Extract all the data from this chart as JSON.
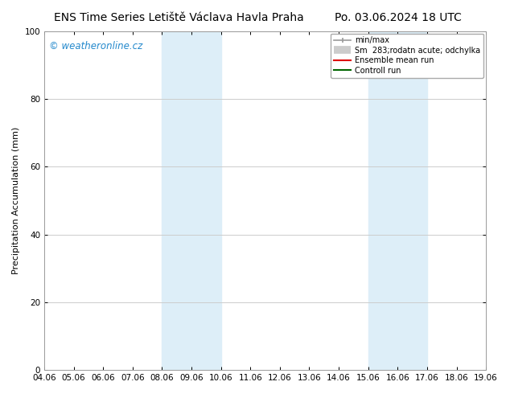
{
  "title_left": "ENS Time Series Letiště Václava Havla Praha",
  "title_right": "Po. 03.06.2024 18 UTC",
  "ylabel": "Precipitation Accumulation (mm)",
  "ylim": [
    0,
    100
  ],
  "yticks": [
    0,
    20,
    40,
    60,
    80,
    100
  ],
  "xtick_labels": [
    "04.06",
    "05.06",
    "06.06",
    "07.06",
    "08.06",
    "09.06",
    "10.06",
    "11.06",
    "12.06",
    "13.06",
    "14.06",
    "15.06",
    "16.06",
    "17.06",
    "18.06",
    "19.06"
  ],
  "shade_regions": [
    {
      "xstart": 4,
      "xend": 6,
      "color": "#ddeef8"
    },
    {
      "xstart": 11,
      "xend": 13,
      "color": "#ddeef8"
    }
  ],
  "watermark": "© weatheronline.cz",
  "watermark_color": "#2288cc",
  "legend_entries": [
    {
      "label": "min/max",
      "color": "#999999",
      "linestyle": "-",
      "linewidth": 1.2
    },
    {
      "label": "Sm  283;rodatn acute; odchylka",
      "color": "#cccccc",
      "linestyle": "-",
      "linewidth": 7
    },
    {
      "label": "Ensemble mean run",
      "color": "#dd0000",
      "linestyle": "-",
      "linewidth": 1.5
    },
    {
      "label": "Controll run",
      "color": "#006600",
      "linestyle": "-",
      "linewidth": 1.5
    }
  ],
  "bg_color": "#ffffff",
  "grid_color": "#cccccc",
  "title_fontsize": 10,
  "ylabel_fontsize": 8,
  "tick_fontsize": 7.5,
  "legend_fontsize": 7
}
